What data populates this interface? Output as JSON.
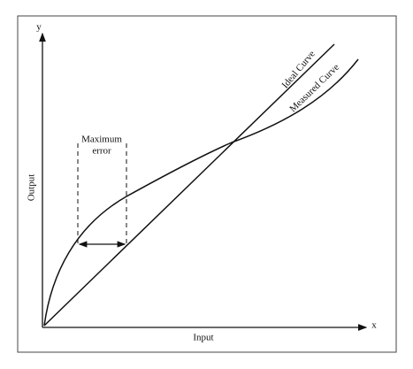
{
  "axes": {
    "y_symbol": "y",
    "x_symbol": "x",
    "x_label": "Input",
    "y_label": "Output"
  },
  "curves": {
    "ideal": "Ideal Curve",
    "measured": "Measured Curve"
  },
  "annotation": {
    "line1": "Maximum",
    "line2": "error"
  }
}
